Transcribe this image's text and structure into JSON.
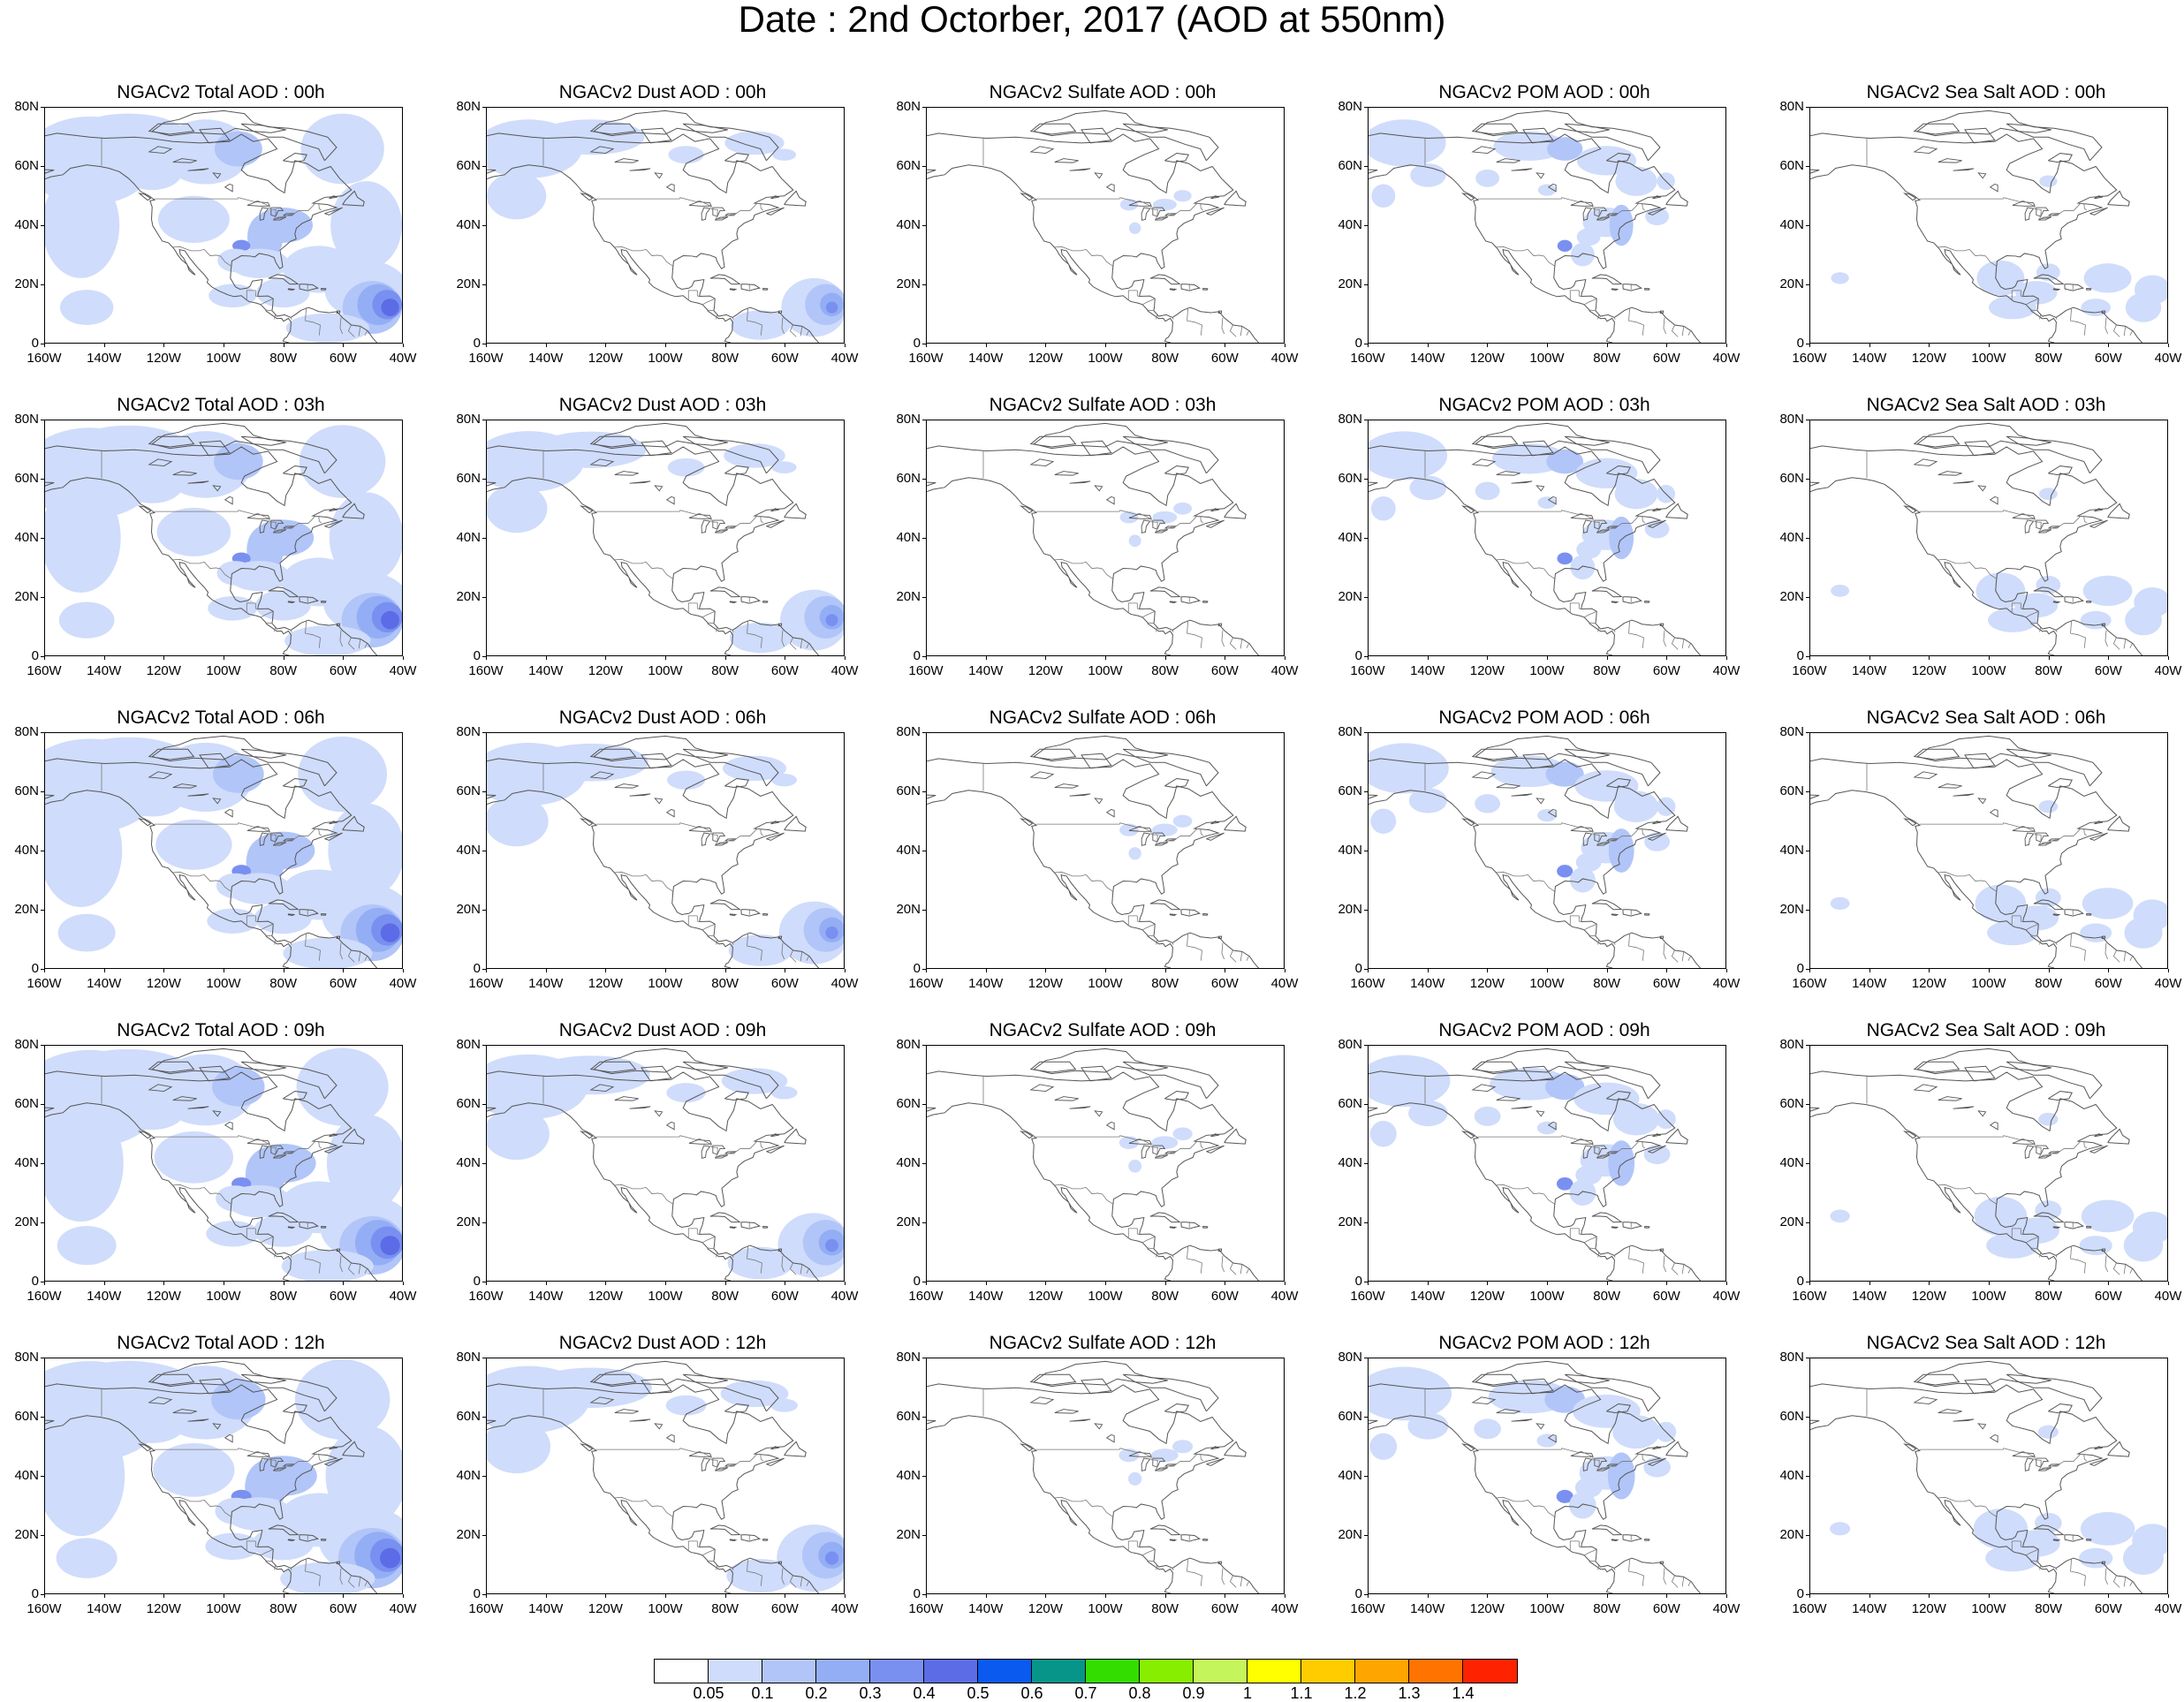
{
  "title": "Date : 2nd Octorber, 2017 (AOD at 550nm)",
  "axes": {
    "y_ticks": [
      "80N",
      "60N",
      "40N",
      "20N",
      "0"
    ],
    "x_ticks": [
      "160W",
      "140W",
      "120W",
      "100W",
      "80W",
      "60W",
      "40W"
    ],
    "lon_range": [
      -160,
      -40
    ],
    "lat_range": [
      0,
      80
    ]
  },
  "panels": [
    [
      {
        "title": "NGACv2 Total AOD : 00h",
        "field": "total"
      },
      {
        "title": "NGACv2 Dust AOD : 00h",
        "field": "dust"
      },
      {
        "title": "NGACv2 Sulfate AOD : 00h",
        "field": "sulfate"
      },
      {
        "title": "NGACv2 POM AOD : 00h",
        "field": "pom"
      },
      {
        "title": "NGACv2 Sea Salt AOD : 00h",
        "field": "seasalt"
      }
    ],
    [
      {
        "title": "NGACv2 Total AOD : 03h",
        "field": "total"
      },
      {
        "title": "NGACv2 Dust AOD : 03h",
        "field": "dust"
      },
      {
        "title": "NGACv2 Sulfate AOD : 03h",
        "field": "sulfate"
      },
      {
        "title": "NGACv2 POM AOD : 03h",
        "field": "pom"
      },
      {
        "title": "NGACv2 Sea Salt AOD : 03h",
        "field": "seasalt"
      }
    ],
    [
      {
        "title": "NGACv2 Total AOD : 06h",
        "field": "total"
      },
      {
        "title": "NGACv2 Dust AOD : 06h",
        "field": "dust"
      },
      {
        "title": "NGACv2 Sulfate AOD : 06h",
        "field": "sulfate"
      },
      {
        "title": "NGACv2 POM AOD : 06h",
        "field": "pom"
      },
      {
        "title": "NGACv2 Sea Salt AOD : 06h",
        "field": "seasalt"
      }
    ],
    [
      {
        "title": "NGACv2 Total AOD : 09h",
        "field": "total"
      },
      {
        "title": "NGACv2 Dust AOD : 09h",
        "field": "dust"
      },
      {
        "title": "NGACv2 Sulfate AOD : 09h",
        "field": "sulfate"
      },
      {
        "title": "NGACv2 POM AOD : 09h",
        "field": "pom"
      },
      {
        "title": "NGACv2 Sea Salt  AOD : 09h",
        "field": "seasalt"
      }
    ],
    [
      {
        "title": "NGACv2 Total AOD  : 12h",
        "field": "total"
      },
      {
        "title": "NGACv2 Dust AOD : 12h",
        "field": "dust"
      },
      {
        "title": "NGACv2 Sulfate AOD : 12h",
        "field": "sulfate"
      },
      {
        "title": "NGACv2 POM  AOD : 12h",
        "field": "pom"
      },
      {
        "title": "NGACv2 Sea Salt  AOD : 12h",
        "field": "seasalt"
      }
    ]
  ],
  "colorbar": {
    "labels": [
      "0.05",
      "0.1",
      "0.2",
      "0.3",
      "0.4",
      "0.5",
      "0.6",
      "0.7",
      "0.8",
      "0.9",
      "1",
      "1.1",
      "1.2",
      "1.3",
      "1.4"
    ],
    "colors": [
      "#ffffff",
      "#cfdcfb",
      "#b1c5f8",
      "#93aef5",
      "#7a90f0",
      "#5b6ce6",
      "#0a5af0",
      "#07958a",
      "#33dd00",
      "#88ee00",
      "#c4f55a",
      "#ffff00",
      "#ffcc00",
      "#ffa500",
      "#ff7300",
      "#ff2200"
    ]
  }
}
